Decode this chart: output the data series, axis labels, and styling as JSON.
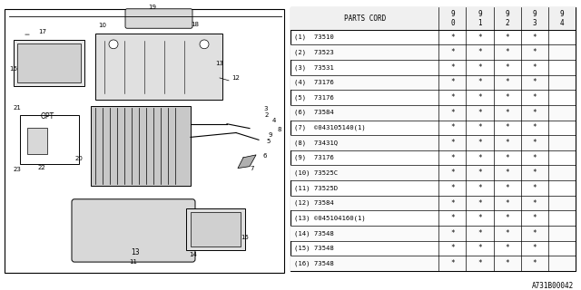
{
  "title": "",
  "bg_color": "#ffffff",
  "border_color": "#000000",
  "table": {
    "header_row": [
      "PARTS CORD",
      "9\n0",
      "9\n1",
      "9\n2",
      "9\n3",
      "9\n4"
    ],
    "rows": [
      [
        "(1)  73510",
        "*",
        "*",
        "*",
        "*",
        ""
      ],
      [
        "(2)  73523",
        "*",
        "*",
        "*",
        "*",
        ""
      ],
      [
        "(3)  73531",
        "*",
        "*",
        "*",
        "*",
        ""
      ],
      [
        "(4)  73176",
        "*",
        "*",
        "*",
        "*",
        ""
      ],
      [
        "(5)  73176",
        "*",
        "*",
        "*",
        "*",
        ""
      ],
      [
        "(6)  73584",
        "*",
        "*",
        "*",
        "*",
        ""
      ],
      [
        "(7)  ©043105140(1)",
        "*",
        "*",
        "*",
        "*",
        ""
      ],
      [
        "(8)  73431Q",
        "*",
        "*",
        "*",
        "*",
        ""
      ],
      [
        "(9)  73176",
        "*",
        "*",
        "*",
        "*",
        ""
      ],
      [
        "(10) 73525C",
        "*",
        "*",
        "*",
        "*",
        ""
      ],
      [
        "(11) 73525D",
        "*",
        "*",
        "*",
        "*",
        ""
      ],
      [
        "(12) 73584",
        "*",
        "*",
        "*",
        "*",
        ""
      ],
      [
        "(13) ©045104160(1)",
        "*",
        "*",
        "*",
        "*",
        ""
      ],
      [
        "(14) 73548",
        "*",
        "*",
        "*",
        "*",
        ""
      ],
      [
        "(15) 73548",
        "*",
        "*",
        "*",
        "*",
        ""
      ],
      [
        "(16) 73548",
        "*",
        "*",
        "*",
        "*",
        ""
      ]
    ]
  },
  "footer_text": "A731B00042",
  "diagram_border": true
}
